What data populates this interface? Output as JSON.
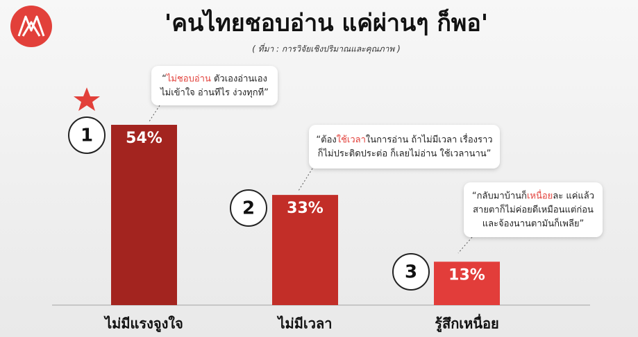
{
  "chart_data": {
    "type": "bar",
    "title": "'คนไทยชอบอ่าน แค่ผ่านๆ ก็พอ'",
    "subtitle": "( ที่มา : การวิจัยเชิงปริมาณและคุณภาพ )",
    "categories": [
      "ไม่มีแรงจูงใจ",
      "ไม่มีเวลา",
      "รู้สึกเหนื่อย"
    ],
    "values": [
      54,
      33,
      13
    ],
    "value_labels": [
      "54%",
      "33%",
      "13%"
    ],
    "ranks": [
      "1",
      "2",
      "3"
    ],
    "colors": [
      "#a3241f",
      "#c22e28",
      "#e23d3a"
    ],
    "quotes": [
      {
        "lines": [
          [
            "“",
            "ไม่ชอบอ่าน",
            " ตัวเองอ่านเอง"
          ],
          [
            "ไม่เข้าใจ อ่านทีไร ง่วงทุกที”"
          ]
        ]
      },
      {
        "lines": [
          [
            "“ต้อง",
            "ใช้เวลา",
            "ในการอ่าน ถ้าไม่มีเวลา เรื่องราว"
          ],
          [
            "ก็ไม่ประติดประต่อ ก็เลยไม่อ่าน ใช้เวลานาน”"
          ]
        ]
      },
      {
        "lines": [
          [
            "“กลับมาบ้านก็",
            "เหนื่อย",
            "ละ แค่แล้ว"
          ],
          [
            "สายตาก็ไม่ค่อยดีเหมือนแต่ก่อน"
          ],
          [
            "และจ้องนานตามันก็เพลีย”"
          ]
        ]
      }
    ]
  }
}
